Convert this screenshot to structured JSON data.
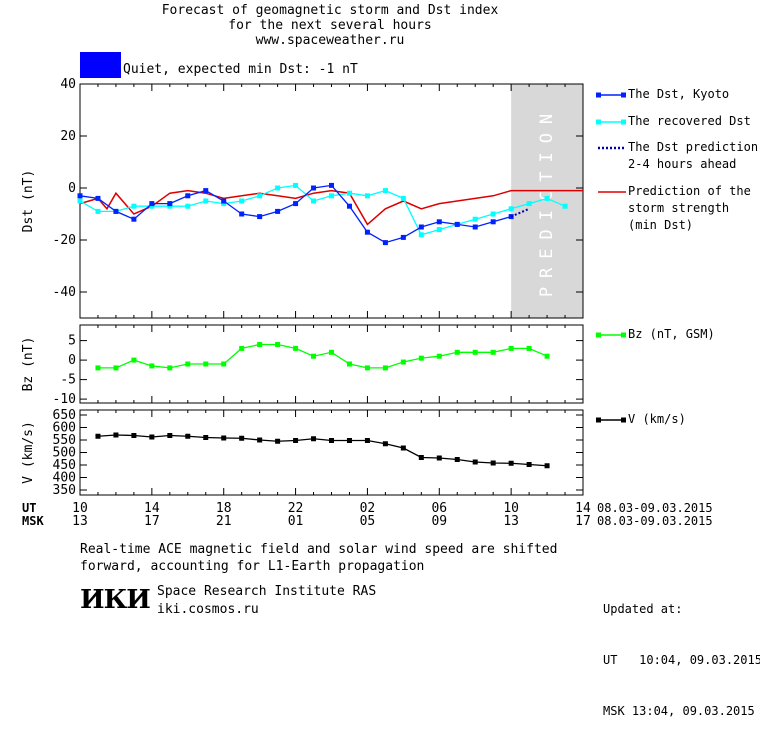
{
  "header": {
    "line1": "Forecast of geomagnetic storm and Dst index",
    "line2": "for the next several hours",
    "line3": "www.spaceweather.ru"
  },
  "status": {
    "text": "Quiet, expected min Dst: -1 nT",
    "color": "#0000ff"
  },
  "legend": {
    "dst_kyoto": "The Dst, Kyoto",
    "dst_recovered": "The recovered Dst",
    "dst_pred_1": "The Dst prediction",
    "dst_pred_2": "2-4 hours ahead",
    "storm_1": "Prediction of the",
    "storm_2": "storm strength",
    "storm_3": "(min Dst)",
    "bz": "Bz (nT, GSM)",
    "v": "V (km/s)"
  },
  "prediction_label": "PREDICTION",
  "time_axis": {
    "ut_label": "UT",
    "msk_label": "MSK",
    "ut_ticks": [
      "10",
      "14",
      "18",
      "22",
      "02",
      "06",
      "10",
      "14"
    ],
    "msk_ticks": [
      "13",
      "17",
      "21",
      "01",
      "05",
      "09",
      "13",
      "17"
    ],
    "date_range_ut": "08.03-09.03.2015",
    "date_range_msk": "08.03-09.03.2015"
  },
  "notes": {
    "line1": "Real-time ACE magnetic field and solar wind speed are shifted",
    "line2": "forward, accounting for L1-Earth propagation"
  },
  "org": {
    "logo": "ИКИ",
    "name": "Space Research Institute RAS",
    "site": "iki.cosmos.ru"
  },
  "updated": {
    "label": "Updated at:",
    "ut": "UT   10:04, 09.03.2015",
    "msk": "MSK 13:04, 09.03.2015"
  },
  "colors": {
    "dst_kyoto": "#0022ff",
    "dst_recovered": "#00ffff",
    "dst_prediction": "#0000aa",
    "storm": "#dd0000",
    "bz": "#00ff00",
    "v": "#000000",
    "prediction_band": "#d8d8d8"
  },
  "chart_data": [
    {
      "type": "line",
      "ylabel": "Dst (nT)",
      "xlim": [
        0,
        28
      ],
      "ylim": [
        -50,
        40
      ],
      "yticks": [
        40,
        20,
        0,
        -20,
        -40
      ],
      "prediction_start_hour": 24,
      "series": [
        {
          "name": "The Dst, Kyoto",
          "x": [
            0,
            1,
            2,
            3,
            4,
            5,
            6,
            7,
            8,
            9,
            10,
            11,
            12,
            13,
            14,
            15,
            16,
            17,
            18,
            19,
            20,
            21,
            22,
            23,
            24
          ],
          "y": [
            -3,
            -4,
            -9,
            -12,
            -6,
            -6,
            -3,
            -1,
            -5,
            -10,
            -11,
            -9,
            -6,
            0,
            1,
            -7,
            -17,
            -21,
            -19,
            -15,
            -13,
            -14,
            -15,
            -13,
            -11
          ]
        },
        {
          "name": "The recovered Dst",
          "x": [
            0,
            1,
            2,
            3,
            4,
            5,
            6,
            7,
            8,
            9,
            10,
            11,
            12,
            13,
            14,
            15,
            16,
            17,
            18,
            19,
            20,
            21,
            22,
            23,
            24,
            25,
            26,
            27
          ],
          "y": [
            -5,
            -9,
            -9,
            -7,
            -7,
            -7,
            -7,
            -5,
            -6,
            -5,
            -3,
            0,
            1,
            -5,
            -3,
            -2,
            -3,
            -1,
            -4,
            -18,
            -16,
            -14,
            -12,
            -10,
            -8,
            -6,
            -4,
            -7
          ]
        },
        {
          "name": "The Dst prediction 2-4 hours ahead",
          "x": [
            24,
            25
          ],
          "y": [
            -11,
            -8
          ]
        },
        {
          "name": "Prediction of the storm strength (min Dst)",
          "x": [
            0,
            1,
            1.5,
            2,
            3,
            4,
            5,
            6,
            7,
            8,
            9,
            10,
            11,
            12,
            13,
            14,
            15,
            16,
            17,
            18,
            19,
            20,
            21,
            22,
            23,
            24,
            25,
            26,
            27,
            28
          ],
          "y": [
            -6,
            -4,
            -8,
            -2,
            -10,
            -7,
            -2,
            -1,
            -2,
            -4,
            -3,
            -2,
            -3,
            -4,
            -2,
            -1,
            -2,
            -14,
            -8,
            -5,
            -8,
            -6,
            -5,
            -4,
            -3,
            -1,
            -1,
            -1,
            -1,
            -1
          ]
        }
      ]
    },
    {
      "type": "line",
      "ylabel": "Bz (nT)",
      "xlim": [
        0,
        28
      ],
      "ylim": [
        -11,
        9
      ],
      "yticks": [
        5,
        0,
        -5,
        -10
      ],
      "series": [
        {
          "name": "Bz (nT, GSM)",
          "x": [
            1,
            2,
            3,
            4,
            5,
            6,
            7,
            8,
            9,
            10,
            11,
            12,
            13,
            14,
            15,
            16,
            17,
            18,
            19,
            20,
            21,
            22,
            23,
            24,
            25,
            26
          ],
          "y": [
            -2,
            -2,
            0,
            -1.5,
            -2,
            -1,
            -1,
            -1,
            3,
            4,
            4,
            3,
            1,
            2,
            -1,
            -2,
            -2,
            -0.5,
            0.5,
            1,
            2,
            2,
            2,
            3,
            3,
            1
          ]
        }
      ]
    },
    {
      "type": "line",
      "ylabel": "V (km/s)",
      "xlim": [
        0,
        28
      ],
      "ylim": [
        330,
        670
      ],
      "yticks": [
        650,
        600,
        550,
        500,
        450,
        400,
        350
      ],
      "series": [
        {
          "name": "V (km/s)",
          "x": [
            1,
            2,
            3,
            4,
            5,
            6,
            7,
            8,
            9,
            10,
            11,
            12,
            13,
            14,
            15,
            16,
            17,
            18,
            19,
            20,
            21,
            22,
            23,
            24,
            25,
            26
          ],
          "y": [
            565,
            570,
            568,
            562,
            568,
            565,
            560,
            558,
            557,
            550,
            545,
            548,
            555,
            548,
            548,
            548,
            535,
            518,
            480,
            478,
            472,
            462,
            458,
            457,
            452,
            447
          ]
        }
      ]
    }
  ]
}
